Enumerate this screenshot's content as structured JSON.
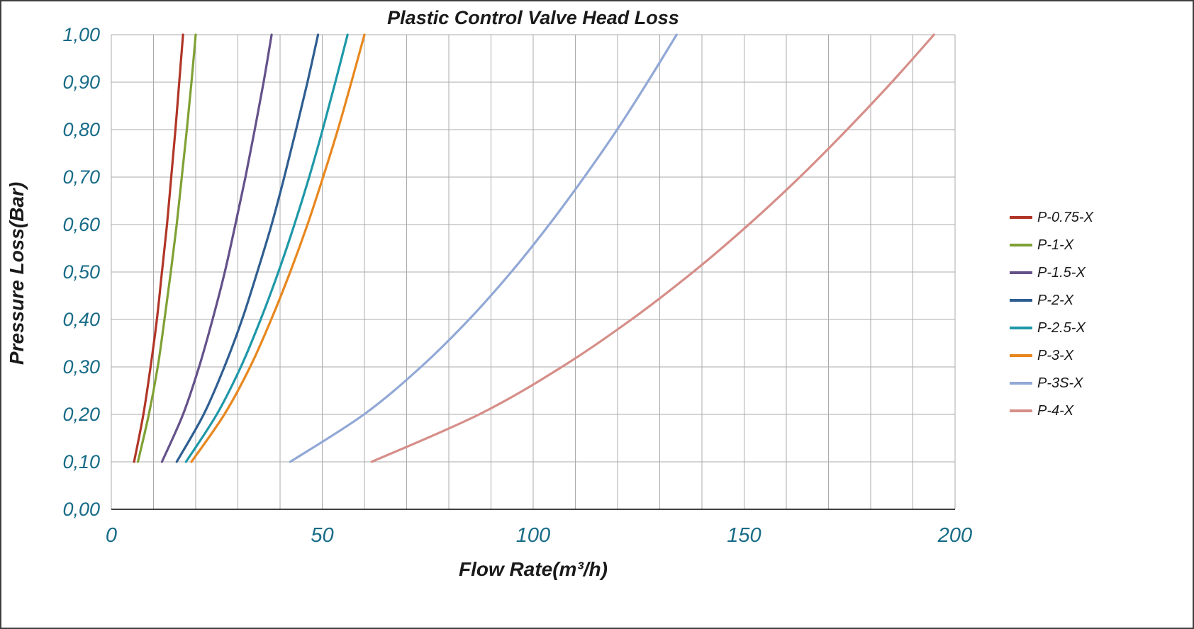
{
  "window": {
    "background": "#ffffff",
    "border_color": "#3f3f3f"
  },
  "chart_data": {
    "type": "line",
    "title": "Plastic Control Valve Head Loss",
    "xlabel": "Flow Rate(m³/h)",
    "ylabel": "Pressure Loss(Bar)",
    "xlim": [
      0,
      200
    ],
    "ylim": [
      0,
      1.0
    ],
    "x_major_ticks": [
      0,
      50,
      100,
      150,
      200
    ],
    "x_minor_grid_step": 10,
    "y_tick_step": 0.1,
    "y_tick_labels": [
      "0,00",
      "0,10",
      "0,20",
      "0,30",
      "0,40",
      "0,50",
      "0,60",
      "0,70",
      "0,80",
      "0,90",
      "1,00"
    ],
    "decimal_separator": ",",
    "grid": true,
    "grid_color": "#ababab",
    "axis_line_color": "#000000",
    "tick_label_color": "#176b87",
    "legend_position": "right",
    "pressure_points": [
      0.1,
      0.2,
      0.3,
      0.4,
      0.5,
      0.6,
      0.7,
      0.8,
      0.9,
      1.0
    ],
    "series": [
      {
        "name": "P-0.75-X",
        "color": "#b13527",
        "flows": [
          5.4,
          7.6,
          9.3,
          10.8,
          12.0,
          13.2,
          14.2,
          15.2,
          16.1,
          17.0
        ]
      },
      {
        "name": "P-1-X",
        "color": "#7fa135",
        "flows": [
          6.3,
          8.9,
          11.0,
          12.6,
          14.1,
          15.5,
          16.7,
          17.9,
          19.0,
          20.0
        ]
      },
      {
        "name": "P-1.5-X",
        "color": "#64518a",
        "flows": [
          12.0,
          17.0,
          20.8,
          24.0,
          26.9,
          29.4,
          31.8,
          34.0,
          36.1,
          38.0
        ]
      },
      {
        "name": "P-2-X",
        "color": "#2f5e91",
        "flows": [
          15.5,
          21.9,
          26.8,
          31.0,
          34.6,
          38.0,
          41.0,
          43.8,
          46.5,
          49.0
        ]
      },
      {
        "name": "P-2.5-X",
        "color": "#1e98a8",
        "flows": [
          17.7,
          25.0,
          30.7,
          35.4,
          39.6,
          43.4,
          46.9,
          50.1,
          53.1,
          56.0
        ]
      },
      {
        "name": "P-3-X",
        "color": "#e8871e",
        "flows": [
          19.0,
          26.8,
          32.9,
          37.9,
          42.4,
          46.5,
          50.2,
          53.7,
          56.9,
          60.0
        ]
      },
      {
        "name": "P-3S-X",
        "color": "#92a8d6",
        "flows": [
          42.4,
          59.9,
          73.4,
          84.8,
          94.8,
          103.8,
          112.1,
          119.9,
          127.1,
          134.0
        ]
      },
      {
        "name": "P-4-X",
        "color": "#d68e88",
        "flows": [
          61.7,
          87.2,
          106.8,
          123.3,
          137.9,
          151.1,
          163.2,
          174.4,
          185.0,
          195.0
        ]
      }
    ]
  }
}
